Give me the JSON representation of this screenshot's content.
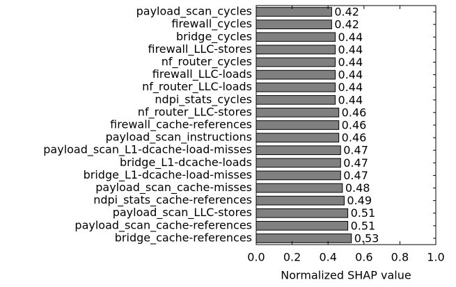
{
  "chart_data": {
    "type": "barh",
    "xlabel": "Normalized SHAP value",
    "categories": [
      "payload_scan_cycles",
      "firewall_cycles",
      "bridge_cycles",
      "firewall_LLC-stores",
      "nf_router_cycles",
      "firewall_LLC-loads",
      "nf_router_LLC-loads",
      "ndpi_stats_cycles",
      "nf_router_LLC-stores",
      "firewall_cache-references",
      "payload_scan_instructions",
      "payload_scan_L1-dcache-load-misses",
      "bridge_L1-dcache-loads",
      "bridge_L1-dcache-load-misses",
      "payload_scan_cache-misses",
      "ndpi_stats_cache-references",
      "payload_scan_LLC-stores",
      "payload_scan_cache-references",
      "bridge_cache-references"
    ],
    "values": [
      0.42,
      0.42,
      0.44,
      0.44,
      0.44,
      0.44,
      0.44,
      0.44,
      0.46,
      0.46,
      0.46,
      0.47,
      0.47,
      0.47,
      0.48,
      0.49,
      0.51,
      0.51,
      0.53
    ],
    "color": "#808080",
    "xlim": [
      0,
      1
    ],
    "xticks": [
      {
        "value": 0,
        "label": "0.0"
      },
      0.2,
      0.4,
      0.6,
      0.8,
      {
        "value": 1,
        "label": "1.0"
      }
    ]
  }
}
